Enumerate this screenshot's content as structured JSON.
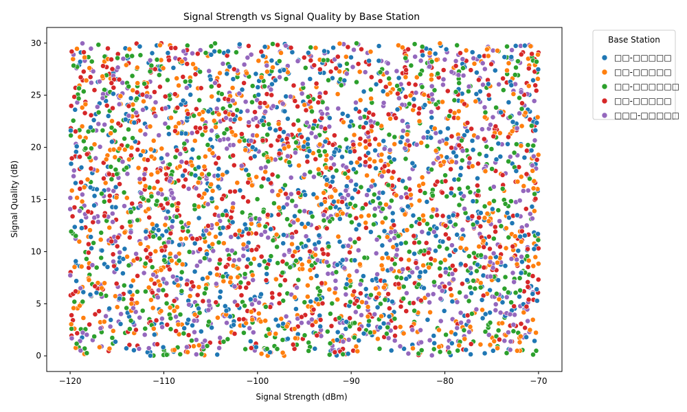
{
  "chart_data": {
    "type": "scatter",
    "title": "Signal Strength vs Signal Quality by Base Station",
    "xlabel": "Signal Strength (dBm)",
    "ylabel": "Signal Quality (dB)",
    "xlim": [
      -122.5,
      -67.5
    ],
    "ylim": [
      -1.5,
      31.5
    ],
    "xticks": [
      -120,
      -110,
      -100,
      -90,
      -80,
      -70
    ],
    "yticks": [
      0,
      5,
      10,
      15,
      20,
      25,
      30
    ],
    "x_range": [
      -120,
      -70
    ],
    "y_range": [
      0,
      30
    ],
    "points_per_series": 700,
    "grid": false,
    "legend": {
      "title": "Base Station",
      "placement": "outside-top-right"
    },
    "series": [
      {
        "name": "□□-□□□□□",
        "color": "#1f77b4"
      },
      {
        "name": "□□-□□□□□",
        "color": "#ff7f0e"
      },
      {
        "name": "□□-□□□□□□",
        "color": "#2ca02c"
      },
      {
        "name": "□□-□□□□□",
        "color": "#d62728"
      },
      {
        "name": "□□□-□□□□□",
        "color": "#9467bd"
      }
    ]
  }
}
